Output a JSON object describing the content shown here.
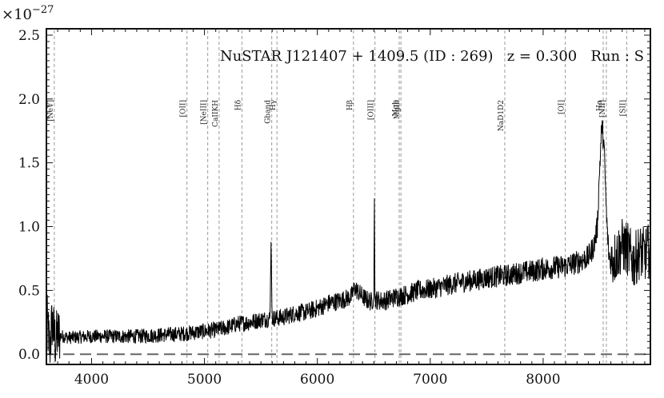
{
  "chart_data": {
    "type": "line",
    "title": "NuSTAR J121407 + 1409.5 (ID : 269)   z = 0.300   Run : S",
    "xlabel": "",
    "ylabel": "",
    "y_scale_label": "×10",
    "y_scale_exponent": "−27",
    "xlim": [
      3600,
      8950
    ],
    "ylim": [
      -0.08,
      2.55
    ],
    "x_ticks": [
      4000,
      5000,
      6000,
      7000,
      8000
    ],
    "x_tick_labels": [
      "4000",
      "5000",
      "6000",
      "7000",
      "8000"
    ],
    "y_ticks": [
      0.0,
      0.5,
      1.0,
      1.5,
      2.0,
      2.5
    ],
    "y_tick_labels": [
      "0.0",
      "0.5",
      "1.0",
      "1.5",
      "2.0",
      "2.5"
    ],
    "zero_line": 0.0,
    "grid": false,
    "series": [
      {
        "x": [
          3600,
          3630,
          3650,
          3680,
          3700,
          3800,
          4000,
          4200,
          4400,
          4600,
          4800,
          4900,
          5000,
          5100,
          5200,
          5300,
          5400,
          5500,
          5580,
          5590,
          5600,
          5700,
          5800,
          5900,
          6000,
          6100,
          6200,
          6300,
          6330,
          6380,
          6430,
          6480,
          6500,
          6505,
          6510,
          6550,
          6600,
          6700,
          6800,
          6900,
          7000,
          7100,
          7200,
          7300,
          7400,
          7500,
          7600,
          7700,
          7800,
          7900,
          8000,
          8100,
          8200,
          8300,
          8400,
          8450,
          8480,
          8500,
          8520,
          8540,
          8560,
          8580,
          8600,
          8650,
          8700,
          8750,
          8800,
          8850,
          8900,
          8950
        ],
        "y": [
          0.3,
          0.05,
          0.25,
          0.1,
          0.15,
          0.13,
          0.14,
          0.14,
          0.14,
          0.15,
          0.16,
          0.17,
          0.18,
          0.19,
          0.21,
          0.24,
          0.25,
          0.27,
          0.28,
          0.88,
          0.28,
          0.29,
          0.32,
          0.33,
          0.36,
          0.4,
          0.42,
          0.45,
          0.52,
          0.47,
          0.43,
          0.41,
          0.45,
          1.22,
          0.43,
          0.42,
          0.42,
          0.45,
          0.47,
          0.5,
          0.51,
          0.53,
          0.55,
          0.57,
          0.58,
          0.6,
          0.61,
          0.62,
          0.64,
          0.65,
          0.67,
          0.68,
          0.69,
          0.72,
          0.76,
          0.85,
          1.0,
          1.45,
          1.8,
          1.62,
          1.1,
          0.8,
          0.72,
          0.78,
          0.85,
          0.82,
          0.72,
          0.8,
          0.78,
          0.82
        ]
      }
    ],
    "line_markers": [
      {
        "label": "[NeV]",
        "x": 3670
      },
      {
        "label": "[OII]",
        "x": 4845
      },
      {
        "label": "[NeIII]",
        "x": 5029
      },
      {
        "label": "CaIIKH",
        "x": 5130
      },
      {
        "label": "Hδ",
        "x": 5332
      },
      {
        "label": "Gband",
        "x": 5596
      },
      {
        "label": "Hγ",
        "x": 5642
      },
      {
        "label": "Hβ",
        "x": 6320
      },
      {
        "label": "[OIII]",
        "x": 6510
      },
      {
        "label": "Mgb",
        "x": 6725
      },
      {
        "label": "MgIb",
        "x": 6740
      },
      {
        "label": "NaD1D2",
        "x": 7660
      },
      {
        "label": "[OI]",
        "x": 8196
      },
      {
        "label": "Hα",
        "x": 8532
      },
      {
        "label": "[NII]",
        "x": 8560
      },
      {
        "label": "[SII]",
        "x": 8740
      }
    ]
  }
}
